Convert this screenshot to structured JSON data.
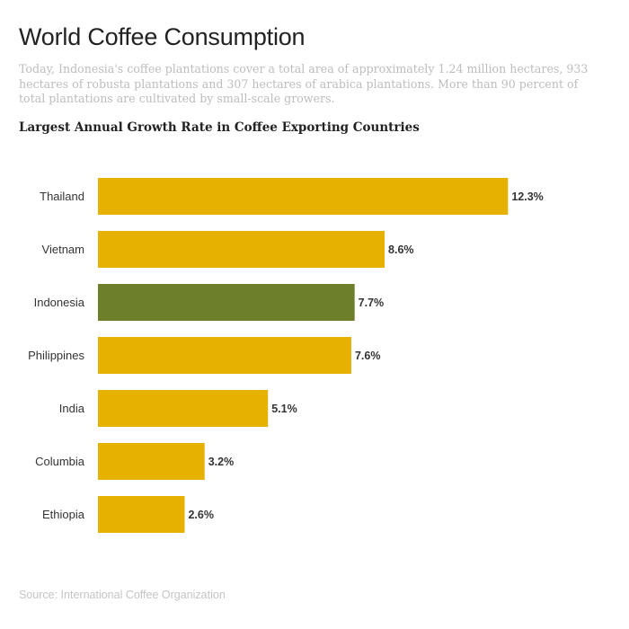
{
  "title": "World Coffee Consumption",
  "description": "Today, Indonesia's coffee plantations cover a total area of approximately 1.24 million hectares, 933 hectares of robusta plantations and 307 hectares of arabica plantations. More than 90 percent of total plantations are cultivated by small-scale growers.",
  "source": "Source: International Coffee Organization",
  "chart_data": {
    "type": "bar",
    "orientation": "horizontal",
    "title": "Largest Annual Growth Rate in Coffee Exporting Countries",
    "xlabel": "",
    "ylabel": "",
    "unit": "%",
    "grid": false,
    "categories": [
      "Thailand",
      "Vietnam",
      "Indonesia",
      "Philippines",
      "India",
      "Columbia",
      "Ethiopia"
    ],
    "values": [
      12.3,
      8.6,
      7.7,
      7.6,
      5.1,
      3.2,
      2.6
    ],
    "value_labels": [
      "12.3%",
      "8.6%",
      "7.7%",
      "7.6%",
      "5.1%",
      "3.2%",
      "2.6%"
    ],
    "colors": [
      "#e6b100",
      "#e6b100",
      "#6e7f2c",
      "#e6b100",
      "#e6b100",
      "#e6b100",
      "#e6b100"
    ]
  }
}
